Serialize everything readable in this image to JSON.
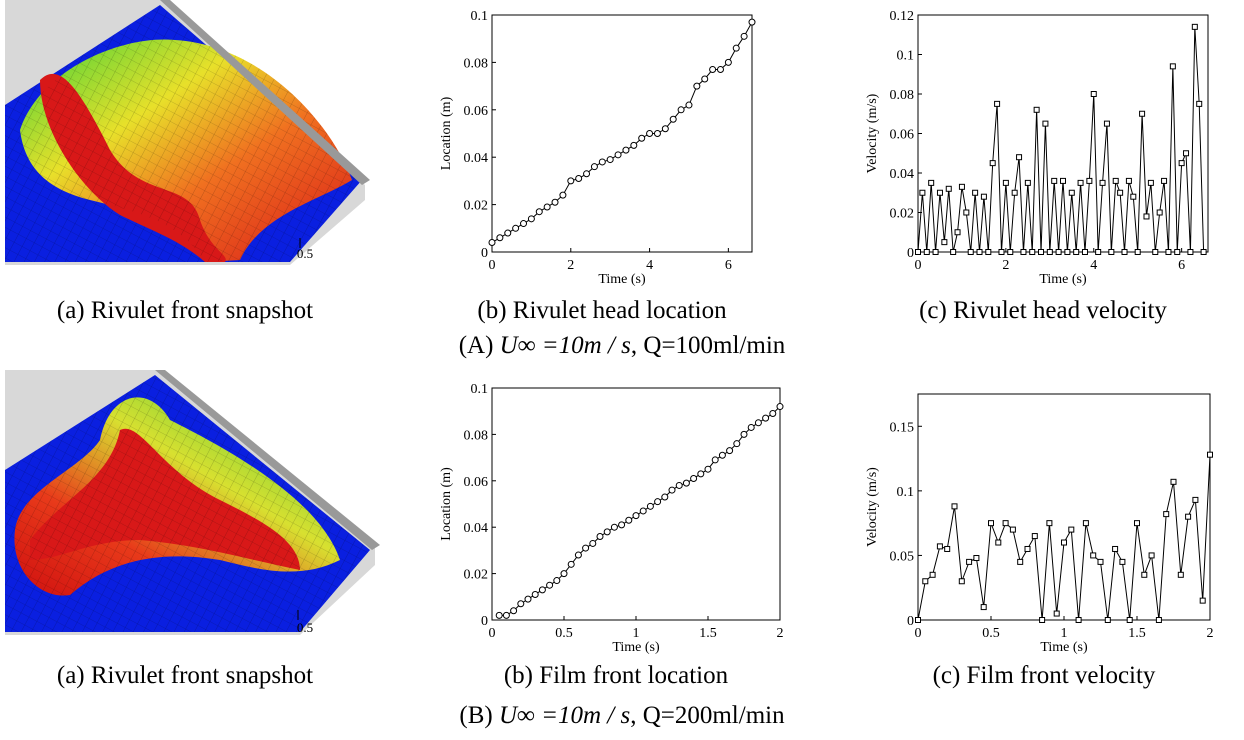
{
  "snapshots": [
    {
      "caption": "(a) Rivulet front snapshot",
      "tick": "0.5"
    },
    {
      "caption": "(a) Rivulet front snapshot",
      "tick": "0.5"
    }
  ],
  "row_captions": [
    {
      "label": "(A)",
      "formula": "U∞ =10m / s",
      "text": ", Q=100ml/min"
    },
    {
      "label": "(B)",
      "formula": "U∞ =10m / s",
      "text": ", Q=200ml/min"
    }
  ],
  "chart_data": [
    {
      "type": "line",
      "caption": "(b) Rivulet head location",
      "xlabel": "Time (s)",
      "ylabel": "Location (m)",
      "marker": "circle",
      "color": "#000000",
      "xlim": [
        0,
        6.6
      ],
      "xticks": [
        0,
        2,
        4,
        6
      ],
      "ylim": [
        0,
        0.1
      ],
      "yticks": [
        0,
        0.02,
        0.04,
        0.06,
        0.08,
        0.1
      ],
      "x": [
        0,
        0.2,
        0.4,
        0.6,
        0.8,
        1.0,
        1.2,
        1.4,
        1.6,
        1.8,
        2.0,
        2.2,
        2.4,
        2.6,
        2.8,
        3.0,
        3.2,
        3.4,
        3.6,
        3.8,
        4.0,
        4.2,
        4.4,
        4.6,
        4.8,
        5.0,
        5.2,
        5.4,
        5.6,
        5.8,
        6.0,
        6.2,
        6.4,
        6.6
      ],
      "values": [
        0.004,
        0.006,
        0.008,
        0.01,
        0.012,
        0.014,
        0.017,
        0.019,
        0.021,
        0.024,
        0.03,
        0.031,
        0.033,
        0.036,
        0.038,
        0.039,
        0.041,
        0.043,
        0.045,
        0.048,
        0.05,
        0.05,
        0.052,
        0.056,
        0.06,
        0.062,
        0.07,
        0.073,
        0.077,
        0.077,
        0.08,
        0.086,
        0.091,
        0.097
      ]
    },
    {
      "type": "line",
      "caption": "(c) Rivulet head velocity",
      "xlabel": "Time (s)",
      "ylabel": "Velocity (m/s)",
      "marker": "square",
      "color": "#000000",
      "xlim": [
        0,
        6.6
      ],
      "xticks": [
        0,
        2,
        4,
        6
      ],
      "ylim": [
        0,
        0.12
      ],
      "yticks": [
        0,
        0.02,
        0.04,
        0.06,
        0.08,
        0.1,
        0.12
      ],
      "x": [
        0,
        0.1,
        0.2,
        0.3,
        0.4,
        0.5,
        0.6,
        0.7,
        0.8,
        0.9,
        1.0,
        1.1,
        1.2,
        1.3,
        1.4,
        1.5,
        1.6,
        1.7,
        1.8,
        1.9,
        2.0,
        2.1,
        2.2,
        2.3,
        2.4,
        2.5,
        2.6,
        2.7,
        2.8,
        2.9,
        3.0,
        3.1,
        3.2,
        3.3,
        3.4,
        3.5,
        3.6,
        3.7,
        3.8,
        3.9,
        4.0,
        4.1,
        4.2,
        4.3,
        4.4,
        4.5,
        4.6,
        4.7,
        4.8,
        4.9,
        5.0,
        5.1,
        5.2,
        5.3,
        5.4,
        5.5,
        5.6,
        5.7,
        5.8,
        5.9,
        6.0,
        6.1,
        6.2,
        6.3,
        6.4,
        6.5
      ],
      "values": [
        0,
        0.03,
        0,
        0.035,
        0,
        0.03,
        0.005,
        0.032,
        0,
        0.01,
        0.033,
        0.02,
        0,
        0.03,
        0,
        0.028,
        0,
        0.045,
        0.075,
        0,
        0.035,
        0,
        0.03,
        0.048,
        0,
        0.035,
        0,
        0.072,
        0,
        0.065,
        0,
        0.036,
        0,
        0.036,
        0,
        0.03,
        0,
        0.035,
        0,
        0.036,
        0.08,
        0,
        0.035,
        0.065,
        0,
        0.036,
        0.03,
        0,
        0.036,
        0.028,
        0,
        0.07,
        0.018,
        0.035,
        0,
        0.02,
        0.036,
        0,
        0.094,
        0,
        0.045,
        0.05,
        0,
        0.114,
        0.075,
        0
      ]
    },
    {
      "type": "line",
      "caption": "(b) Film front location",
      "xlabel": "Time (s)",
      "ylabel": "Location (m)",
      "marker": "circle",
      "color": "#000000",
      "xlim": [
        0,
        2
      ],
      "xticks": [
        0,
        0.5,
        1,
        1.5,
        2
      ],
      "ylim": [
        0,
        0.1
      ],
      "yticks": [
        0,
        0.02,
        0.04,
        0.06,
        0.08,
        0.1
      ],
      "x": [
        0.05,
        0.1,
        0.15,
        0.2,
        0.25,
        0.3,
        0.35,
        0.4,
        0.45,
        0.5,
        0.55,
        0.6,
        0.65,
        0.7,
        0.75,
        0.8,
        0.85,
        0.9,
        0.95,
        1.0,
        1.05,
        1.1,
        1.15,
        1.2,
        1.25,
        1.3,
        1.35,
        1.4,
        1.45,
        1.5,
        1.55,
        1.6,
        1.65,
        1.7,
        1.75,
        1.8,
        1.85,
        1.9,
        1.95,
        2.0
      ],
      "values": [
        0.002,
        0.002,
        0.004,
        0.007,
        0.009,
        0.011,
        0.013,
        0.015,
        0.017,
        0.02,
        0.024,
        0.028,
        0.031,
        0.033,
        0.036,
        0.038,
        0.04,
        0.041,
        0.043,
        0.045,
        0.047,
        0.049,
        0.051,
        0.053,
        0.056,
        0.058,
        0.059,
        0.061,
        0.063,
        0.065,
        0.069,
        0.071,
        0.073,
        0.076,
        0.08,
        0.083,
        0.085,
        0.087,
        0.089,
        0.092
      ]
    },
    {
      "type": "line",
      "caption": "(c) Film front velocity",
      "xlabel": "Time (s)",
      "ylabel": "Velocity (m/s)",
      "marker": "square",
      "color": "#000000",
      "xlim": [
        0,
        2
      ],
      "xticks": [
        0,
        0.5,
        1,
        1.5,
        2
      ],
      "ylim": [
        0,
        0.175
      ],
      "yticks": [
        0,
        0.05,
        0.1,
        0.15
      ],
      "x": [
        0,
        0.05,
        0.1,
        0.15,
        0.2,
        0.25,
        0.3,
        0.35,
        0.4,
        0.45,
        0.5,
        0.55,
        0.6,
        0.65,
        0.7,
        0.75,
        0.8,
        0.85,
        0.9,
        0.95,
        1.0,
        1.05,
        1.1,
        1.15,
        1.2,
        1.25,
        1.3,
        1.35,
        1.4,
        1.45,
        1.5,
        1.55,
        1.6,
        1.65,
        1.7,
        1.75,
        1.8,
        1.85,
        1.9,
        1.95,
        2.0
      ],
      "values": [
        0,
        0.03,
        0.035,
        0.057,
        0.055,
        0.088,
        0.03,
        0.045,
        0.048,
        0.01,
        0.075,
        0.06,
        0.075,
        0.07,
        0.045,
        0.055,
        0.065,
        0,
        0.075,
        0.005,
        0.06,
        0.07,
        0,
        0.075,
        0.05,
        0.045,
        0,
        0.055,
        0.045,
        0,
        0.075,
        0.035,
        0.05,
        0,
        0.082,
        0.107,
        0.035,
        0.08,
        0.093,
        0.015,
        0.128
      ]
    }
  ]
}
